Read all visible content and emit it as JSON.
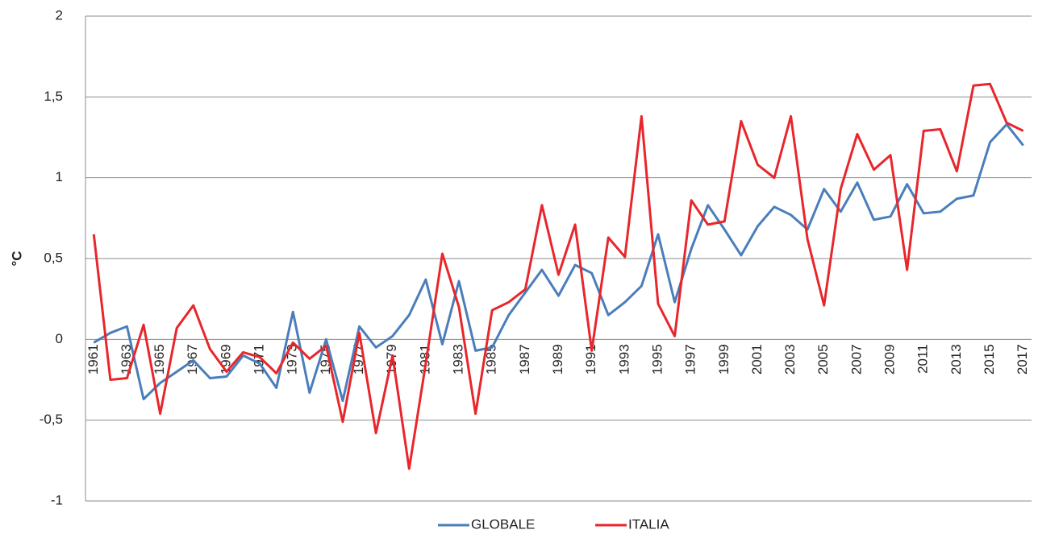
{
  "chart_data": {
    "type": "line",
    "ylabel": "°C",
    "categories": [
      "1961",
      null,
      "1963",
      null,
      "1965",
      null,
      "1967",
      null,
      "1969",
      null,
      "1971",
      null,
      "1973",
      null,
      "1975",
      null,
      "1977",
      null,
      "1979",
      null,
      "1981",
      null,
      "1983",
      null,
      "1985",
      null,
      "1987",
      null,
      "1989",
      null,
      "1991",
      null,
      "1993",
      null,
      "1995",
      null,
      "1997",
      null,
      "1999",
      null,
      "2001",
      null,
      "2003",
      null,
      "2005",
      null,
      "2007",
      null,
      "2009",
      null,
      "2011",
      null,
      "2013",
      null,
      "2015",
      null,
      "2017"
    ],
    "series": [
      {
        "name": "GLOBALE",
        "color": "#4a7ebb",
        "values": [
          -0.02,
          0.04,
          0.08,
          -0.37,
          -0.27,
          -0.2,
          -0.13,
          -0.24,
          -0.23,
          -0.1,
          -0.15,
          -0.3,
          0.17,
          -0.33,
          0.0,
          -0.38,
          0.08,
          -0.05,
          0.02,
          0.15,
          0.37,
          -0.03,
          0.36,
          -0.07,
          -0.05,
          0.15,
          0.29,
          0.43,
          0.27,
          0.46,
          0.41,
          0.15,
          0.23,
          0.33,
          0.65,
          0.23,
          0.56,
          0.83,
          0.68,
          0.52,
          0.7,
          0.82,
          0.77,
          0.68,
          0.93,
          0.79,
          0.97,
          0.74,
          0.76,
          0.96,
          0.78,
          0.79,
          0.87,
          0.89,
          1.22,
          1.33,
          1.2
        ]
      },
      {
        "name": "ITALIA",
        "color": "#e8262b",
        "values": [
          0.65,
          -0.25,
          -0.24,
          0.09,
          -0.46,
          0.07,
          0.21,
          -0.06,
          -0.2,
          -0.08,
          -0.11,
          -0.21,
          -0.02,
          -0.12,
          -0.04,
          -0.51,
          0.04,
          -0.58,
          -0.1,
          -0.8,
          -0.15,
          0.53,
          0.2,
          -0.46,
          0.18,
          0.23,
          0.31,
          0.83,
          0.4,
          0.71,
          -0.07,
          0.63,
          0.51,
          1.38,
          0.22,
          0.02,
          0.86,
          0.71,
          0.73,
          1.35,
          1.08,
          1.0,
          1.38,
          0.62,
          0.21,
          0.93,
          1.27,
          1.05,
          1.14,
          0.43,
          1.29,
          1.3,
          1.04,
          1.57,
          1.58,
          1.34,
          1.29
        ]
      }
    ],
    "ylim": [
      -1,
      2
    ],
    "yticks": [
      -1,
      {
        "value": -0.5,
        "label": "-0,5"
      },
      0,
      {
        "value": 0.5,
        "label": "0,5"
      },
      1,
      {
        "value": 1.5,
        "label": "1,5"
      },
      2
    ],
    "grid": true,
    "legend": "bottom"
  }
}
